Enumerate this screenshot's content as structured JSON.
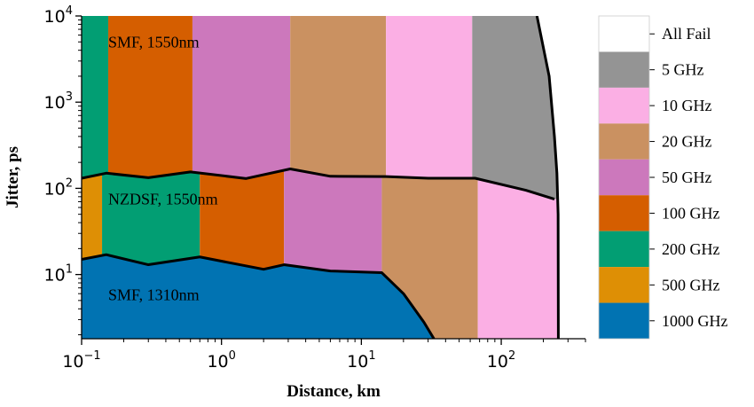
{
  "chart_data": {
    "type": "area",
    "xlabel": "Distance, km",
    "ylabel": "Jitter, ps",
    "xscale": "log",
    "yscale": "log",
    "xlim": [
      0.1,
      400
    ],
    "ylim": [
      1.8,
      10000
    ],
    "x_ticks": [
      {
        "value": 0.1,
        "base": "10",
        "exp": "−1"
      },
      {
        "value": 1,
        "base": "10",
        "exp": "0"
      },
      {
        "value": 10,
        "base": "10",
        "exp": "1"
      },
      {
        "value": 100,
        "base": "10",
        "exp": "2"
      }
    ],
    "y_ticks": [
      {
        "value": 10,
        "base": "10",
        "exp": "1"
      },
      {
        "value": 100,
        "base": "10",
        "exp": "2"
      },
      {
        "value": 1000,
        "base": "10",
        "exp": "3"
      },
      {
        "value": 10000,
        "base": "10",
        "exp": "4"
      }
    ],
    "colors": {
      "All Fail": "#ffffff",
      "5 GHz": "#949494",
      "10 GHz": "#fbafe4",
      "20 GHz": "#ca9161",
      "50 GHz": "#cc78bc",
      "100 GHz": "#d55e00",
      "200 GHz": "#029e73",
      "500 GHz": "#de8f05",
      "1000 GHz": "#0173b2"
    },
    "legend": {
      "position": "right",
      "entries": [
        "All Fail",
        "5 GHz",
        "10 GHz",
        "20 GHz",
        "50 GHz",
        "100 GHz",
        "200 GHz",
        "500 GHz",
        "1000 GHz"
      ]
    },
    "region_labels": [
      {
        "text": "SMF, 1550nm",
        "x": 0.155,
        "y": 5000
      },
      {
        "text": "NZDSF, 1550nm",
        "x": 0.155,
        "y": 75
      },
      {
        "text": "SMF, 1310nm",
        "x": 0.155,
        "y": 5.8
      }
    ],
    "boundaries": {
      "upper": [
        [
          0.1,
          131
        ],
        [
          0.15,
          150
        ],
        [
          0.3,
          133
        ],
        [
          0.6,
          155
        ],
        [
          1.5,
          130
        ],
        [
          3.1,
          168
        ],
        [
          6,
          138
        ],
        [
          15,
          137
        ],
        [
          30,
          131
        ],
        [
          65,
          131
        ],
        [
          150,
          95
        ],
        [
          240,
          75
        ]
      ],
      "lower": [
        [
          0.1,
          15
        ],
        [
          0.15,
          17
        ],
        [
          0.3,
          13
        ],
        [
          0.7,
          16
        ],
        [
          2,
          11.5
        ],
        [
          2.8,
          13
        ],
        [
          6,
          11
        ],
        [
          14,
          10.5
        ],
        [
          20,
          6
        ],
        [
          28,
          2.8
        ],
        [
          33,
          1.8
        ]
      ],
      "fail": [
        [
          180,
          10000
        ],
        [
          220,
          2000
        ],
        [
          240,
          400
        ],
        [
          250,
          150
        ],
        [
          255,
          50
        ],
        [
          256,
          1.8
        ]
      ]
    },
    "bands": {
      "smf1550": [
        {
          "label": "200 GHz",
          "x0": 0.1,
          "x1": 0.155
        },
        {
          "label": "100 GHz",
          "x0": 0.155,
          "x1": 0.62
        },
        {
          "label": "50 GHz",
          "x0": 0.62,
          "x1": 3.1
        },
        {
          "label": "20 GHz",
          "x0": 3.1,
          "x1": 15
        },
        {
          "label": "10 GHz",
          "x0": 15,
          "x1": 62
        },
        {
          "label": "5 GHz",
          "x0": 62,
          "x1": 400
        }
      ],
      "nzdsf1550": [
        {
          "label": "500 GHz",
          "x0": 0.1,
          "x1": 0.14
        },
        {
          "label": "200 GHz",
          "x0": 0.14,
          "x1": 0.7
        },
        {
          "label": "100 GHz",
          "x0": 0.7,
          "x1": 2.8
        },
        {
          "label": "50 GHz",
          "x0": 2.8,
          "x1": 14
        },
        {
          "label": "20 GHz",
          "x0": 14,
          "x1": 68
        },
        {
          "label": "10 GHz",
          "x0": 68,
          "x1": 400
        }
      ],
      "smf1310": [
        {
          "label": "1000 GHz",
          "x0": 0.1,
          "x1": 14
        },
        {
          "label": "20 GHz",
          "x0": 14,
          "x1": 68
        },
        {
          "label": "10 GHz",
          "x0": 68,
          "x1": 400
        }
      ]
    }
  }
}
